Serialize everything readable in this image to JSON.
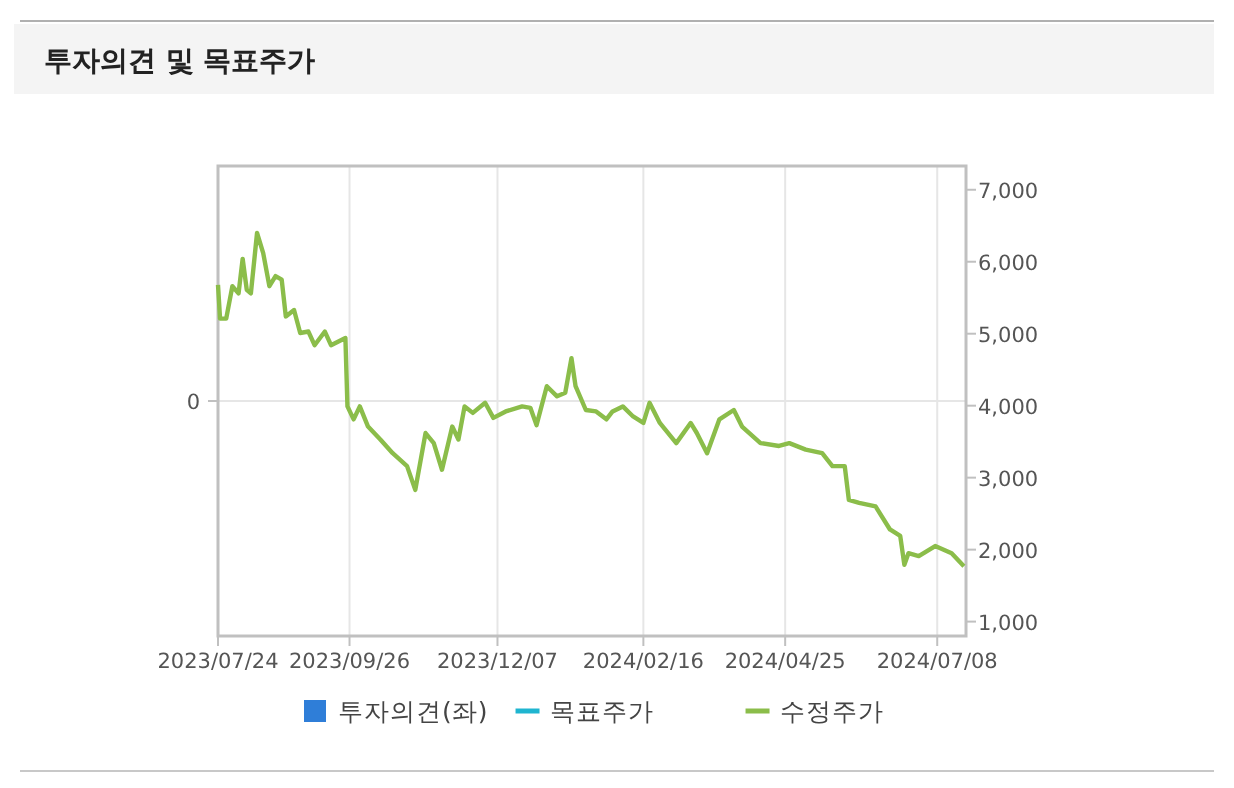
{
  "chart_data": {
    "type": "line",
    "title": "투자의견 및 목표주가",
    "xlim": [
      "2023-07-24",
      "2024-07-22"
    ],
    "xticks": [
      {
        "value": "2023-07-24",
        "label": "2023/07/24"
      },
      {
        "value": "2023-09-26",
        "label": "2023/09/26"
      },
      {
        "value": "2023-12-07",
        "label": "2023/12/07"
      },
      {
        "value": "2024-02-16",
        "label": "2024/02/16"
      },
      {
        "value": "2024-04-25",
        "label": "2024/04/25"
      },
      {
        "value": "2024-07-08",
        "label": "2024/07/08"
      }
    ],
    "annotations": [
      "0"
    ],
    "y2lim": [
      800,
      7330
    ],
    "y2ticks": [
      {
        "value": 1000,
        "label": "1,000"
      },
      {
        "value": 2000,
        "label": "2,000"
      },
      {
        "value": 3000,
        "label": "3,000"
      },
      {
        "value": 4000,
        "label": "4,000"
      },
      {
        "value": 5000,
        "label": "5,000"
      },
      {
        "value": 6000,
        "label": "6,000"
      },
      {
        "value": 7000,
        "label": "7,000"
      }
    ],
    "grid": true,
    "legend": "bottom",
    "marker": "none",
    "series": [
      {
        "name": "투자의견(좌)",
        "type": "bar",
        "color": "#2f7ed8"
      },
      {
        "name": "목표주가",
        "type": "line",
        "color": "#1fb5d0"
      },
      {
        "name": "수정주가",
        "axis": "y2",
        "color": "#8bbd4a",
        "x": [
          "2023-07-24",
          "2023-07-25",
          "2023-07-28",
          "2023-07-31",
          "2023-08-03",
          "2023-08-05",
          "2023-08-07",
          "2023-08-09",
          "2023-08-12",
          "2023-08-15",
          "2023-08-18",
          "2023-08-21",
          "2023-08-24",
          "2023-08-26",
          "2023-08-30",
          "2023-09-02",
          "2023-09-06",
          "2023-09-09",
          "2023-09-14",
          "2023-09-17",
          "2023-09-24",
          "2023-09-25",
          "2023-09-28",
          "2023-10-01",
          "2023-10-05",
          "2023-10-11",
          "2023-10-17",
          "2023-10-24",
          "2023-10-28",
          "2023-11-02",
          "2023-11-06",
          "2023-11-10",
          "2023-11-15",
          "2023-11-18",
          "2023-11-21",
          "2023-11-25",
          "2023-12-01",
          "2023-12-05",
          "2023-12-11",
          "2023-12-19",
          "2023-12-23",
          "2023-12-26",
          "2023-12-31",
          "2024-01-05",
          "2024-01-09",
          "2024-01-12",
          "2024-01-14",
          "2024-01-19",
          "2024-01-24",
          "2024-01-29",
          "2024-02-01",
          "2024-02-06",
          "2024-02-11",
          "2024-02-16",
          "2024-02-19",
          "2024-02-24",
          "2024-03-03",
          "2024-03-10",
          "2024-03-13",
          "2024-03-18",
          "2024-03-24",
          "2024-03-31",
          "2024-04-04",
          "2024-04-13",
          "2024-04-22",
          "2024-04-27",
          "2024-05-05",
          "2024-05-13",
          "2024-05-18",
          "2024-05-24",
          "2024-05-26",
          "2024-05-31",
          "2024-06-08",
          "2024-06-15",
          "2024-06-20",
          "2024-06-22",
          "2024-06-24",
          "2024-06-29",
          "2024-07-07",
          "2024-07-15",
          "2024-07-21"
        ],
        "values": [
          5680,
          5210,
          5210,
          5660,
          5560,
          6040,
          5610,
          5560,
          6400,
          6120,
          5660,
          5800,
          5750,
          5240,
          5330,
          5010,
          5030,
          4840,
          5030,
          4840,
          4940,
          3990,
          3810,
          3990,
          3710,
          3530,
          3340,
          3160,
          2830,
          3620,
          3480,
          3110,
          3710,
          3530,
          3990,
          3900,
          4040,
          3830,
          3920,
          3990,
          3970,
          3730,
          4270,
          4130,
          4180,
          4660,
          4270,
          3940,
          3920,
          3810,
          3920,
          3990,
          3850,
          3760,
          4040,
          3760,
          3480,
          3760,
          3620,
          3340,
          3810,
          3940,
          3710,
          3480,
          3440,
          3480,
          3390,
          3340,
          3160,
          3160,
          2690,
          2650,
          2600,
          2280,
          2190,
          1790,
          1950,
          1910,
          2050,
          1950,
          1770
        ]
      }
    ]
  }
}
